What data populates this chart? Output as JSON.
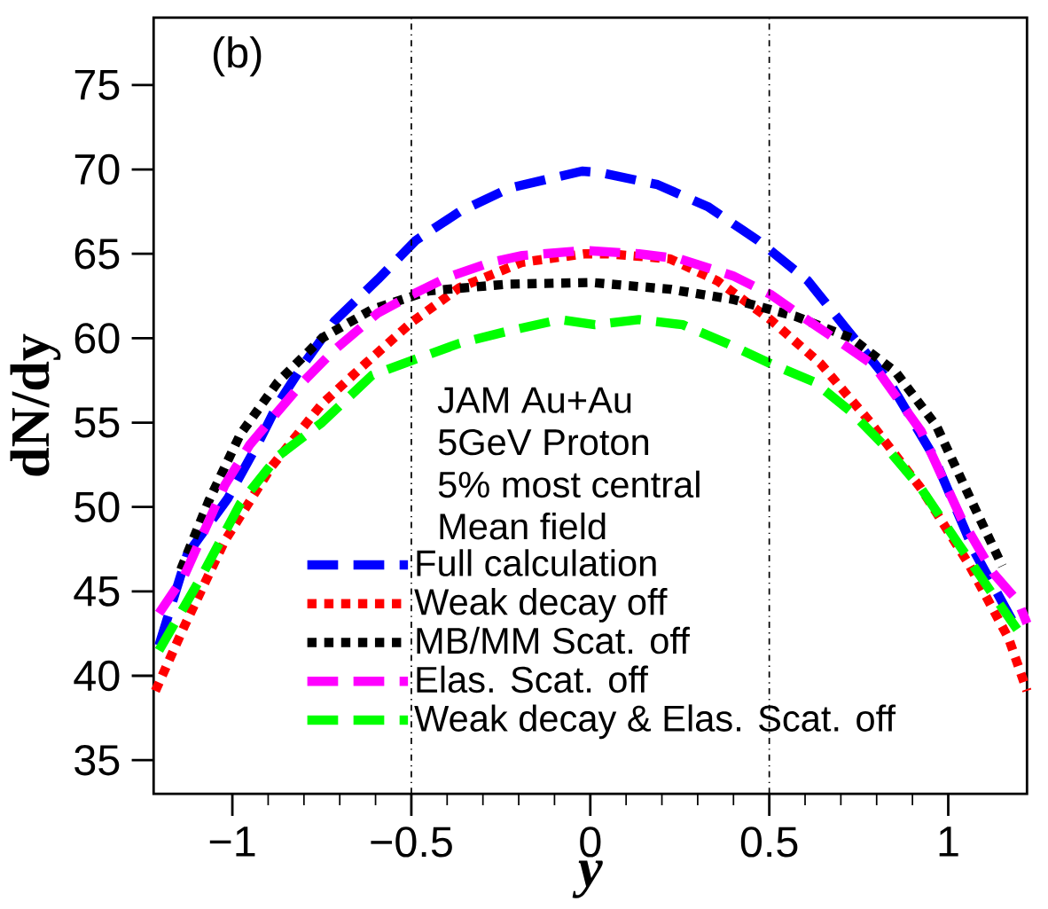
{
  "chart_data": {
    "type": "line",
    "xlabel": "y",
    "ylabel": "dN/dy",
    "xlim": [
      -1.22,
      1.22
    ],
    "ylim": [
      33,
      79
    ],
    "xticks": [
      {
        "value": -1,
        "label": "−1"
      },
      {
        "value": -0.5,
        "label": "−0.5"
      },
      0,
      0.5,
      1
    ],
    "yticks": [
      35,
      40,
      45,
      50,
      55,
      60,
      65,
      70,
      75
    ],
    "grid": false,
    "legend": "bottom",
    "marker": "none",
    "annotations": [
      "(b)",
      "JAM Au+Au",
      "5GeV Proton",
      "5% most central",
      "Mean field"
    ],
    "ref_lines": [
      {
        "axis": "x",
        "value": -0.5,
        "color": "#000000",
        "line_style": "dotted"
      },
      {
        "axis": "x",
        "value": 0.5,
        "color": "#000000",
        "line_style": "dotted"
      }
    ],
    "series": [
      {
        "name": "Full calculation",
        "color": "#0000ff",
        "line_style": "dashed",
        "x": [
          -1.205,
          -1.126,
          -1.013,
          -0.925,
          -0.873,
          -0.803,
          -0.715,
          -0.593,
          -0.487,
          -0.365,
          -0.225,
          -0.023,
          0.031,
          0.188,
          0.328,
          0.468,
          0.608,
          0.714,
          0.836,
          0.959,
          1.072,
          1.186
        ],
        "values": [
          41.8,
          47.2,
          50.5,
          53.9,
          56.1,
          58.4,
          61.0,
          63.5,
          65.8,
          67.5,
          68.9,
          69.9,
          69.8,
          69.1,
          67.8,
          65.8,
          63.4,
          60.6,
          57.4,
          53.0,
          47.4,
          43.0
        ]
      },
      {
        "name": "Weak decay off",
        "color": "#ff0000",
        "line_style": "dotted",
        "x": [
          -1.215,
          -1.135,
          -1.021,
          -0.89,
          -0.75,
          -0.628,
          -0.496,
          -0.365,
          -0.19,
          -0.015,
          0.048,
          0.223,
          0.355,
          0.503,
          0.643,
          0.783,
          0.924,
          1.055,
          1.169,
          1.22
        ],
        "values": [
          39.1,
          42.9,
          48.0,
          52.4,
          56.1,
          58.5,
          61.0,
          63.0,
          64.5,
          65.0,
          65.0,
          64.7,
          63.4,
          61.1,
          58.5,
          55.0,
          51.1,
          46.7,
          42.2,
          39.1
        ]
      },
      {
        "name": "MB/MM Scat. off",
        "color": "#000000",
        "line_style": "dotted",
        "x": [
          -1.144,
          -1.065,
          -0.978,
          -0.873,
          -0.75,
          -0.61,
          -0.452,
          -0.234,
          0.003,
          0.223,
          0.398,
          0.573,
          0.73,
          0.853,
          0.967,
          1.064,
          1.151
        ],
        "values": [
          46.3,
          50.4,
          54.3,
          57.4,
          60.0,
          61.7,
          62.8,
          63.2,
          63.3,
          62.9,
          62.3,
          61.3,
          60.0,
          58.0,
          54.8,
          50.4,
          46.5
        ]
      },
      {
        "name": "Elas. Scat. off",
        "color": "#ff00ff",
        "line_style": "dashed",
        "x": [
          -1.205,
          -1.135,
          -1.021,
          -0.951,
          -0.803,
          -0.715,
          -0.593,
          -0.496,
          -0.4,
          -0.277,
          -0.19,
          -0.015,
          0.136,
          0.25,
          0.398,
          0.503,
          0.591,
          0.696,
          0.792,
          0.924,
          1.037,
          1.125,
          1.195,
          1.22
        ],
        "values": [
          43.7,
          45.9,
          51.3,
          53.7,
          57.4,
          59.3,
          61.5,
          62.6,
          63.6,
          64.5,
          64.9,
          65.2,
          65.0,
          64.7,
          63.7,
          62.6,
          61.3,
          59.8,
          58.4,
          54.5,
          49.3,
          46.1,
          44.4,
          43.1
        ]
      },
      {
        "name": "Weak decay & Elas. Scat. off",
        "color": "#00ff00",
        "line_style": "dashed",
        "x": [
          -1.205,
          -1.091,
          -0.978,
          -0.873,
          -0.75,
          -0.61,
          -0.496,
          -0.365,
          -0.234,
          -0.085,
          0.013,
          0.136,
          0.258,
          0.381,
          0.503,
          0.626,
          0.731,
          0.836,
          0.924,
          1.029,
          1.125,
          1.204
        ],
        "values": [
          41.5,
          45.7,
          50.2,
          53.0,
          55.0,
          57.8,
          58.7,
          59.7,
          60.4,
          61.1,
          60.8,
          61.1,
          60.8,
          59.7,
          58.5,
          57.4,
          55.6,
          53.3,
          51.1,
          47.8,
          44.8,
          42.4
        ]
      }
    ]
  }
}
